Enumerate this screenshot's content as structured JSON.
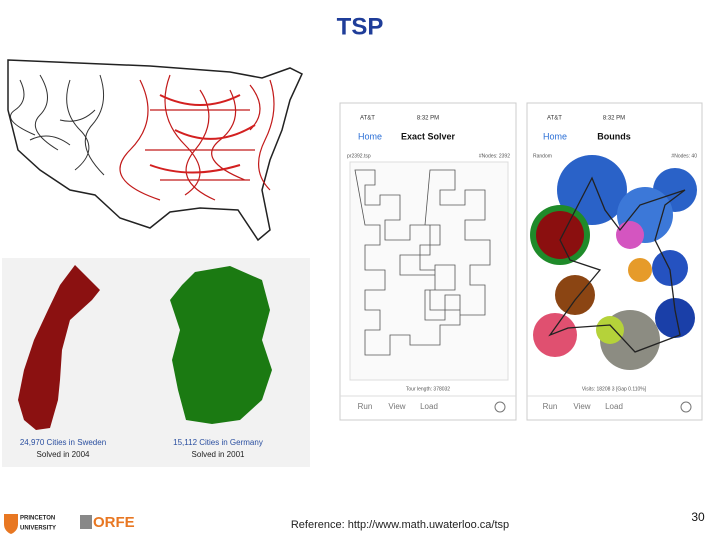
{
  "header": {
    "title": "TSP"
  },
  "maps": {
    "sweden": {
      "caption": "24,970 Cities in Sweden",
      "solved": "Solved in 2004"
    },
    "germany": {
      "caption": "15,112 Cities in Germany",
      "solved": "Solved in 2001"
    }
  },
  "phones": [
    {
      "carrier": "AT&T",
      "time": "8:32 PM",
      "back": "Home",
      "screen": "Exact Solver",
      "file": "pr2392.tsp",
      "nodes": "#Nodes: 2392",
      "status": "Tour length: 378032",
      "buttons": [
        "Run",
        "View",
        "Load"
      ]
    },
    {
      "carrier": "AT&T",
      "time": "8:32 PM",
      "back": "Home",
      "screen": "Bounds",
      "file": "Random",
      "nodes": "#Nodes: 40",
      "status": "Visits: 18208 3 [Gap 0.110%]",
      "buttons": [
        "Run",
        "View",
        "Load"
      ]
    }
  ],
  "footer": {
    "logo_princeton": "PRINCETON",
    "logo_university": "UNIVERSITY",
    "logo_orfe": "ORFE",
    "reference": "Reference:  http://www.math.uwaterloo.ca/tsp",
    "page": "30"
  }
}
